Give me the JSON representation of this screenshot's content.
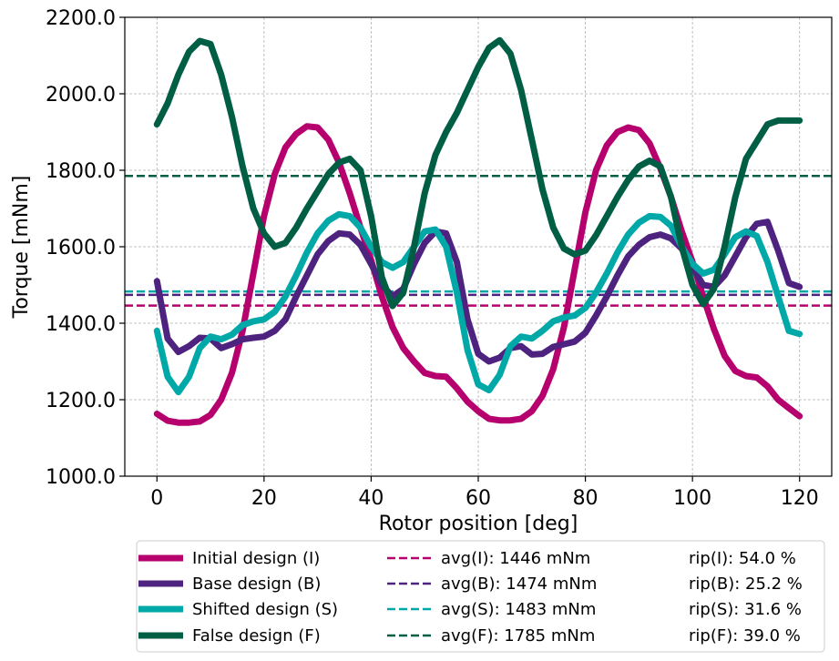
{
  "chart_data": {
    "type": "line",
    "xlabel": "Rotor position [deg]",
    "ylabel": "Torque [mNm]",
    "xlim": [
      -6,
      126
    ],
    "ylim": [
      1000,
      2200
    ],
    "xticks": [
      0,
      20,
      40,
      60,
      80,
      100,
      120
    ],
    "xtick_labels": [
      "0",
      "20",
      "40",
      "60",
      "80",
      "100",
      "120"
    ],
    "yticks": [
      1000,
      1200,
      1400,
      1600,
      1800,
      2000,
      2200
    ],
    "ytick_labels": [
      "1000.0",
      "1200.0",
      "1400.0",
      "1600.0",
      "1800.0",
      "2000.0",
      "2200.0"
    ],
    "grid": true,
    "legend_position": "below plot",
    "series": [
      {
        "name": "Initial design (I)",
        "color": "#b5006e",
        "x": [
          0,
          2,
          4,
          6,
          8,
          10,
          12,
          14,
          16,
          18,
          20,
          22,
          24,
          26,
          28,
          30,
          32,
          34,
          36,
          38,
          40,
          42,
          44,
          46,
          48,
          50,
          52,
          54,
          56,
          58,
          60,
          62,
          64,
          66,
          68,
          70,
          72,
          74,
          76,
          78,
          80,
          82,
          84,
          86,
          88,
          90,
          92,
          94,
          96,
          98,
          100,
          102,
          104,
          106,
          108,
          110,
          112,
          114,
          116,
          118,
          120
        ],
        "y": [
          1163,
          1145,
          1140,
          1140,
          1143,
          1160,
          1200,
          1270,
          1380,
          1530,
          1680,
          1790,
          1860,
          1895,
          1915,
          1912,
          1880,
          1820,
          1740,
          1650,
          1565,
          1470,
          1390,
          1335,
          1300,
          1270,
          1262,
          1260,
          1230,
          1195,
          1170,
          1150,
          1146,
          1146,
          1150,
          1170,
          1210,
          1280,
          1390,
          1540,
          1690,
          1800,
          1865,
          1900,
          1912,
          1905,
          1870,
          1805,
          1730,
          1640,
          1560,
          1470,
          1385,
          1315,
          1275,
          1262,
          1258,
          1235,
          1200,
          1178,
          1157
        ]
      },
      {
        "name": "Base design (B)",
        "color": "#4e2380",
        "x": [
          0,
          2,
          4,
          6,
          8,
          10,
          12,
          14,
          16,
          18,
          20,
          22,
          24,
          26,
          28,
          30,
          32,
          34,
          36,
          38,
          40,
          42,
          44,
          46,
          48,
          50,
          52,
          54,
          56,
          58,
          60,
          62,
          64,
          66,
          68,
          70,
          72,
          74,
          76,
          78,
          80,
          82,
          84,
          86,
          88,
          90,
          92,
          94,
          96,
          98,
          100,
          102,
          104,
          106,
          108,
          110,
          112,
          114,
          116,
          118,
          120
        ],
        "y": [
          1510,
          1360,
          1325,
          1340,
          1362,
          1360,
          1335,
          1345,
          1358,
          1362,
          1365,
          1380,
          1410,
          1470,
          1525,
          1580,
          1615,
          1635,
          1632,
          1605,
          1555,
          1500,
          1470,
          1490,
          1555,
          1610,
          1640,
          1635,
          1560,
          1410,
          1320,
          1300,
          1310,
          1335,
          1340,
          1318,
          1320,
          1338,
          1345,
          1352,
          1375,
          1420,
          1470,
          1525,
          1575,
          1605,
          1625,
          1632,
          1622,
          1595,
          1545,
          1500,
          1495,
          1525,
          1575,
          1625,
          1660,
          1665,
          1590,
          1505,
          1495
        ]
      },
      {
        "name": "Shifted design (S)",
        "color": "#00a8a8",
        "x": [
          0,
          2,
          4,
          6,
          8,
          10,
          12,
          14,
          16,
          18,
          20,
          22,
          24,
          26,
          28,
          30,
          32,
          34,
          36,
          38,
          40,
          42,
          44,
          46,
          48,
          50,
          52,
          54,
          56,
          58,
          60,
          62,
          64,
          66,
          68,
          70,
          72,
          74,
          76,
          78,
          80,
          82,
          84,
          86,
          88,
          90,
          92,
          94,
          96,
          98,
          100,
          102,
          104,
          106,
          108,
          110,
          112,
          114,
          116,
          118,
          120
        ],
        "y": [
          1380,
          1260,
          1220,
          1260,
          1335,
          1365,
          1358,
          1370,
          1395,
          1405,
          1410,
          1430,
          1470,
          1525,
          1585,
          1635,
          1668,
          1685,
          1680,
          1650,
          1600,
          1560,
          1545,
          1560,
          1600,
          1640,
          1645,
          1600,
          1480,
          1330,
          1240,
          1225,
          1265,
          1340,
          1365,
          1360,
          1380,
          1405,
          1415,
          1420,
          1440,
          1480,
          1530,
          1585,
          1632,
          1663,
          1680,
          1678,
          1655,
          1600,
          1555,
          1530,
          1540,
          1580,
          1625,
          1640,
          1628,
          1560,
          1470,
          1380,
          1372
        ]
      },
      {
        "name": "False design (F)",
        "color": "#005e45",
        "x": [
          0,
          2,
          4,
          6,
          8,
          10,
          12,
          14,
          16,
          18,
          20,
          22,
          24,
          26,
          28,
          30,
          32,
          34,
          36,
          38,
          40,
          42,
          44,
          46,
          48,
          50,
          52,
          54,
          56,
          58,
          60,
          62,
          64,
          66,
          68,
          70,
          72,
          74,
          76,
          78,
          80,
          82,
          84,
          86,
          88,
          90,
          92,
          94,
          96,
          98,
          100,
          102,
          104,
          106,
          108,
          110,
          112,
          114,
          116,
          118,
          120
        ],
        "y": [
          1920,
          1975,
          2050,
          2110,
          2138,
          2130,
          2050,
          1940,
          1810,
          1700,
          1635,
          1600,
          1610,
          1650,
          1700,
          1745,
          1790,
          1820,
          1830,
          1800,
          1680,
          1520,
          1445,
          1480,
          1600,
          1740,
          1840,
          1900,
          1950,
          2010,
          2070,
          2120,
          2140,
          2105,
          2010,
          1880,
          1750,
          1650,
          1595,
          1580,
          1590,
          1630,
          1680,
          1730,
          1775,
          1810,
          1825,
          1810,
          1730,
          1600,
          1500,
          1450,
          1490,
          1600,
          1730,
          1830,
          1875,
          1920,
          1930,
          1930,
          1930
        ]
      }
    ],
    "reference_lines": [
      {
        "name": "avg(I): 1446 mNm",
        "value": 1446,
        "color": "#b5006e"
      },
      {
        "name": "avg(B): 1474 mNm",
        "value": 1474,
        "color": "#4e2380"
      },
      {
        "name": "avg(S): 1483 mNm",
        "value": 1483,
        "color": "#00a8a8"
      },
      {
        "name": "avg(F): 1785 mNm",
        "value": 1785,
        "color": "#005e45"
      }
    ],
    "ripple_labels": [
      "rip(I): 54.0 %",
      "rip(B): 25.2 %",
      "rip(S): 31.6 %",
      "rip(F): 39.0 %"
    ]
  }
}
